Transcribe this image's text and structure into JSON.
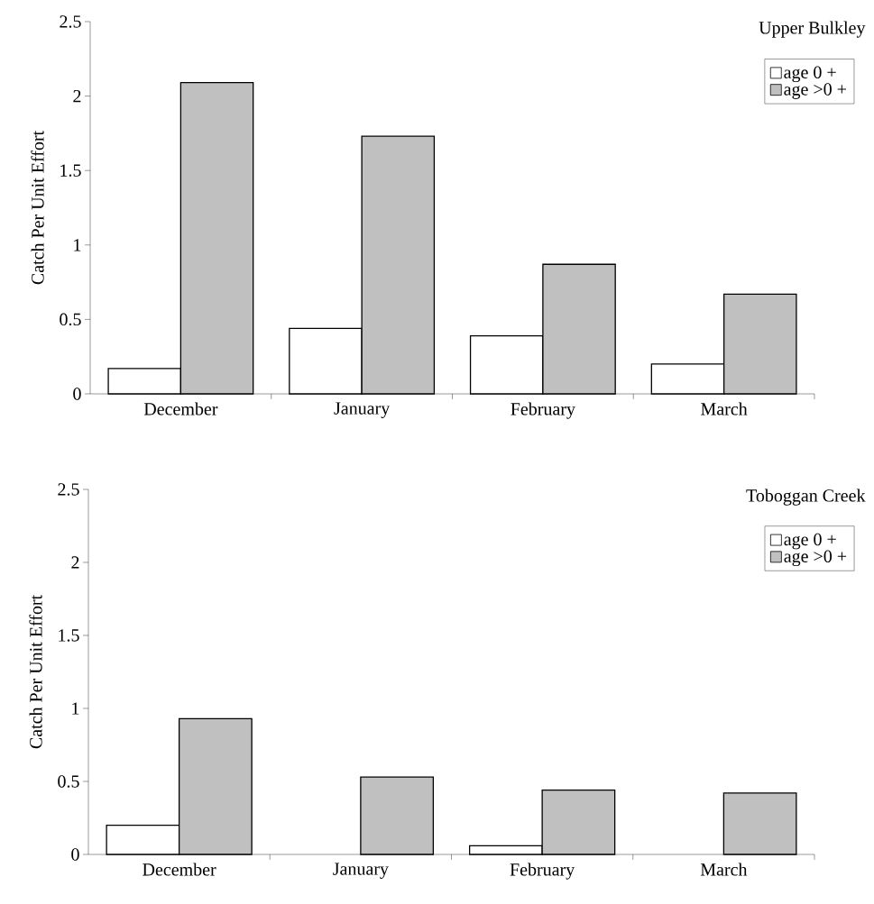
{
  "chart_data": [
    {
      "type": "bar",
      "title": "Upper Bulkley",
      "ylabel": "Catch Per Unit Effort",
      "categories": [
        "December",
        "January",
        "February",
        "March"
      ],
      "series": [
        {
          "name": "age 0 +",
          "color": "#ffffff",
          "values": [
            0.17,
            0.44,
            0.39,
            0.2
          ]
        },
        {
          "name": "age >0 +",
          "color": "#c0c0c0",
          "values": [
            2.09,
            1.73,
            0.87,
            0.67
          ]
        }
      ],
      "ylim": [
        0,
        2.5
      ],
      "yticks": [
        0,
        0.5,
        1,
        1.5,
        2,
        2.5
      ],
      "legend": "top right"
    },
    {
      "type": "bar",
      "title": "Toboggan Creek",
      "ylabel": "Catch Per Unit Effort",
      "categories": [
        "December",
        "January",
        "February",
        "March"
      ],
      "series": [
        {
          "name": "age 0 +",
          "color": "#ffffff",
          "values": [
            0.2,
            0,
            0.06,
            0
          ]
        },
        {
          "name": "age >0 +",
          "color": "#c0c0c0",
          "values": [
            0.93,
            0.53,
            0.44,
            0.42
          ]
        }
      ],
      "ylim": [
        0,
        2.5
      ],
      "yticks": [
        0,
        0.5,
        1,
        1.5,
        2,
        2.5
      ],
      "legend": "top right"
    }
  ]
}
